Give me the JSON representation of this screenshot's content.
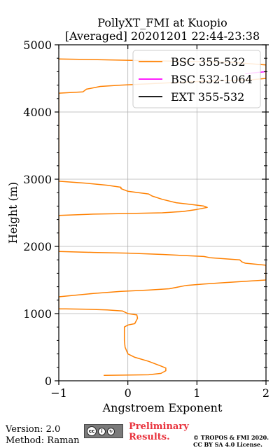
{
  "chart_data": {
    "type": "line",
    "title_line1": "PollyXT_FMI at Kuopio",
    "title_line2": "[Averaged] 20201201 22:44-23:38",
    "xlabel": "Angstroem Exponent",
    "ylabel": "Height (m)",
    "xlim": [
      -1,
      2
    ],
    "ylim": [
      0,
      5000
    ],
    "xticks": [
      -1,
      0,
      1,
      2
    ],
    "yticks": [
      0,
      1000,
      2000,
      3000,
      4000,
      5000
    ],
    "grid": true,
    "legend_position": "top-right",
    "series": [
      {
        "name": "BSC 355-532",
        "color": "#ff8000",
        "x": [
          -0.35,
          0.3,
          0.48,
          0.55,
          0.55,
          0.48,
          0.3,
          0.1,
          0.0,
          -0.02,
          -0.04,
          -0.05,
          -0.05,
          0.0,
          0.1,
          0.14,
          0.13,
          0.0,
          -0.08,
          -0.3,
          -0.6,
          -0.9,
          -1.0,
          -1.0,
          -0.5,
          -0.1,
          0.3,
          0.6,
          0.85,
          1.1,
          1.4,
          1.7,
          2.0,
          2.0,
          1.7,
          1.65,
          1.62,
          1.2,
          1.1,
          0.5,
          0.0,
          -0.5,
          -1.0,
          -1.0,
          -0.5,
          0.0,
          0.5,
          0.8,
          1.0,
          1.15,
          1.1,
          0.95,
          0.7,
          0.5,
          0.35,
          0.3,
          0.0,
          -0.1,
          -0.1,
          -0.3,
          -0.6,
          -1.0,
          -1.0,
          -0.65,
          -0.6,
          -0.4,
          -0.1,
          0.3,
          0.7,
          1.2,
          1.8,
          2.0,
          2.0,
          1.5,
          0.0,
          -1.0
        ],
        "y": [
          80,
          90,
          110,
          150,
          190,
          220,
          290,
          350,
          400,
          450,
          500,
          600,
          800,
          830,
          850,
          930,
          980,
          1000,
          1040,
          1055,
          1065,
          1070,
          1070,
          1250,
          1300,
          1330,
          1350,
          1370,
          1420,
          1440,
          1460,
          1480,
          1500,
          1720,
          1750,
          1770,
          1800,
          1830,
          1850,
          1880,
          1900,
          1910,
          1925,
          2460,
          2480,
          2490,
          2500,
          2520,
          2550,
          2580,
          2600,
          2620,
          2650,
          2700,
          2750,
          2780,
          2820,
          2860,
          2880,
          2910,
          2940,
          2970,
          4280,
          4300,
          4340,
          4380,
          4400,
          4420,
          4440,
          4460,
          4480,
          4500,
          4700,
          4740,
          4770,
          4790
        ]
      },
      {
        "name": "BSC 532-1064",
        "color": "#ff00ff",
        "x": [
          1.7,
          2.0
        ],
        "y": [
          4570,
          4600
        ]
      },
      {
        "name": "EXT 355-532",
        "color": "#000000",
        "x": [],
        "y": []
      }
    ]
  },
  "footer": {
    "version": "Version: 2.0",
    "method": "Method: Raman",
    "preliminary_line1": "Preliminary",
    "preliminary_line2": "Results.",
    "copyright_line1": "© TROPOS & FMI 2020.",
    "copyright_line2": "CC BY SA 4.0 License."
  }
}
